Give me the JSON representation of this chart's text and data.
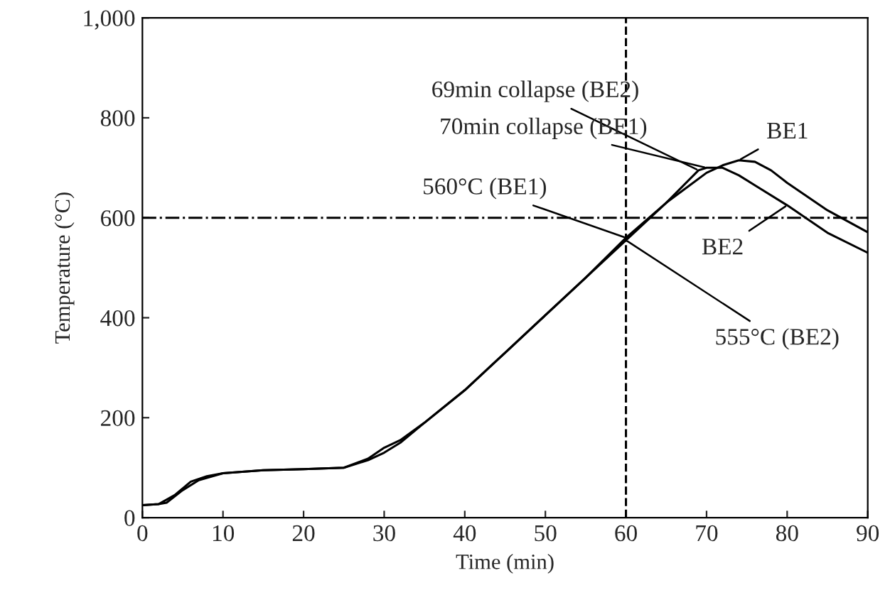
{
  "chart_data": {
    "type": "line",
    "xlabel": "Time (min)",
    "ylabel": "Temperature (°C)",
    "xlim": [
      0,
      90
    ],
    "xticks": [
      0,
      10,
      20,
      30,
      40,
      50,
      60,
      70,
      80,
      90
    ],
    "ylim": [
      0,
      1000
    ],
    "yticks": [
      0,
      200,
      400,
      600,
      800,
      {
        "value": 1000,
        "label": "1,000"
      }
    ],
    "grid": false,
    "legend": false,
    "line_style": "solid",
    "marker": "none",
    "series": [
      {
        "name": "BE1",
        "color": "#000000",
        "x": [
          0,
          2,
          4,
          6,
          8,
          10,
          15,
          20,
          25,
          28,
          30,
          32,
          35,
          40,
          45,
          50,
          55,
          60,
          65,
          70,
          72,
          74,
          76,
          78,
          80,
          85,
          90
        ],
        "values": [
          25,
          27,
          45,
          72,
          83,
          89,
          95,
          97,
          100,
          115,
          130,
          150,
          190,
          255,
          330,
          405,
          480,
          560,
          630,
          690,
          705,
          715,
          712,
          695,
          670,
          615,
          571
        ]
      },
      {
        "name": "BE2",
        "color": "#000000",
        "x": [
          0,
          2,
          3,
          5,
          7,
          10,
          15,
          20,
          25,
          28,
          30,
          32,
          35,
          40,
          45,
          50,
          55,
          60,
          65,
          69,
          70,
          72,
          74,
          76,
          80,
          85,
          90
        ],
        "values": [
          25,
          27,
          30,
          55,
          75,
          89,
          95,
          97,
          100,
          118,
          140,
          155,
          190,
          255,
          330,
          405,
          480,
          555,
          630,
          695,
          700,
          700,
          685,
          665,
          625,
          570,
          530
        ]
      }
    ],
    "ref_lines": [
      {
        "axis": "y",
        "value": 600,
        "line_style": "dashdot",
        "color": "#000000"
      },
      {
        "axis": "x",
        "value": 60,
        "line_style": "dashed",
        "color": "#000000"
      }
    ],
    "annotations": [
      {
        "text": "69min collapse (BE2)",
        "x": 69,
        "y": 695
      },
      {
        "text": "70min collapse (BE1)",
        "x": 70,
        "y": 700
      },
      {
        "text": "560°C (BE1)",
        "x": 60,
        "y": 560
      },
      {
        "text": "555°C (BE2)",
        "x": 60,
        "y": 555
      }
    ]
  }
}
